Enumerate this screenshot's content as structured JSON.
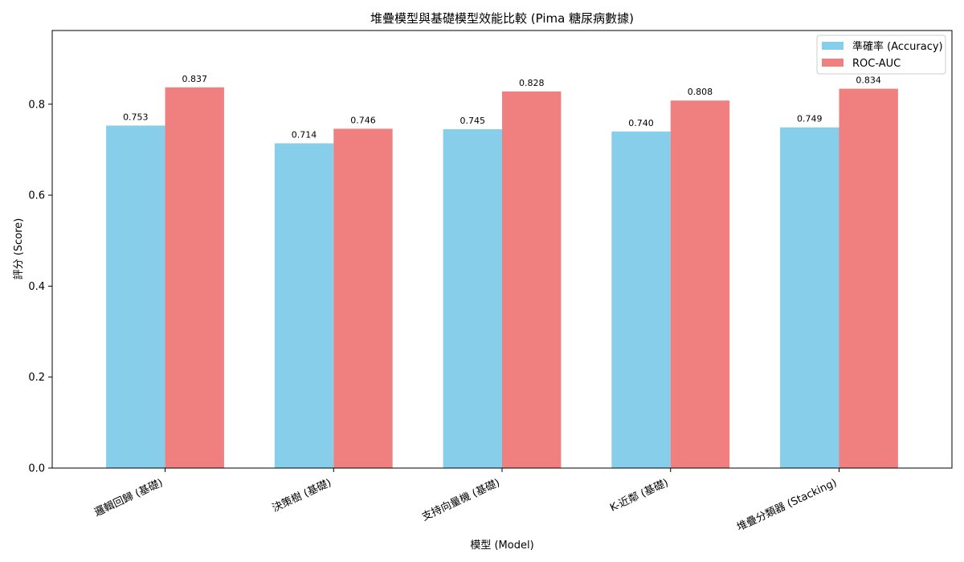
{
  "chart_data": {
    "type": "bar",
    "title": "堆疊模型與基礎模型效能比較 (Pima 糖尿病數據)",
    "xlabel": "模型 (Model)",
    "ylabel": "評分 (Score)",
    "categories": [
      "邏輯回歸 (基礎)",
      "決策樹 (基礎)",
      "支持向量機 (基礎)",
      "K-近鄰 (基礎)",
      "堆疊分類器 (Stacking)"
    ],
    "series": [
      {
        "name": "準確率 (Accuracy)",
        "color": "#87CEEB",
        "values": [
          0.753,
          0.714,
          0.745,
          0.74,
          0.749
        ],
        "labels": [
          "0.753",
          "0.714",
          "0.745",
          "0.740",
          "0.749"
        ]
      },
      {
        "name": "ROC-AUC",
        "color": "#F08080",
        "values": [
          0.837,
          0.746,
          0.828,
          0.808,
          0.834
        ],
        "labels": [
          "0.837",
          "0.746",
          "0.828",
          "0.808",
          "0.834"
        ]
      }
    ],
    "ylim": [
      0,
      0.962
    ],
    "yticks": [
      0.0,
      0.2,
      0.4,
      0.6,
      0.8
    ],
    "ytick_labels": [
      "0.0",
      "0.2",
      "0.4",
      "0.6",
      "0.8"
    ],
    "legend_position": "top-right",
    "grid": false
  }
}
